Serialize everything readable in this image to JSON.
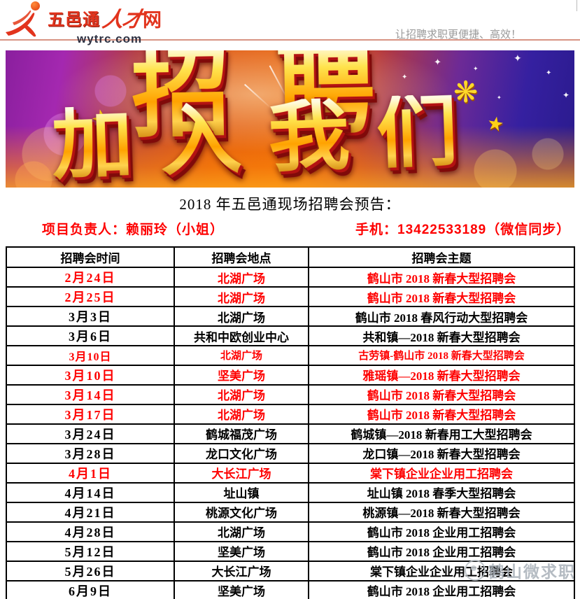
{
  "header": {
    "logo": {
      "brand": "五邑通",
      "brand_talent": "人才",
      "brand_net": "网",
      "domain": "wytrc.com"
    },
    "tagline": "让招聘求职更便捷、高效！"
  },
  "banner": {
    "title_line1": "招聘",
    "title_line2": "加入我们",
    "icons": {
      "star": "★",
      "flower": "❋",
      "sparkle": "✦"
    }
  },
  "intro": {
    "title": "2018 年五邑通现场招聘会预告：",
    "contact_person": "项目负责人：赖丽玲（小姐）",
    "contact_phone": "手机：13422533189（微信同步）"
  },
  "fair_table": {
    "headers": [
      "招聘会时间",
      "招聘会地点",
      "招聘会主题"
    ],
    "rows": [
      {
        "date": "2月24日",
        "place": "北湖广场",
        "theme": "鹤山市 2018 新春大型招聘会",
        "highlight": true
      },
      {
        "date": "2月25日",
        "place": "北湖广场",
        "theme": "鹤山市 2018 新春大型招聘会",
        "highlight": true
      },
      {
        "date": "3月3日",
        "place": "北湖广场",
        "theme": "鹤山市 2018 春风行动大型招聘会",
        "highlight": false
      },
      {
        "date": "3月6日",
        "place": "共和中欧创业中心",
        "theme": "共和镇—2018 新春大型招聘会",
        "highlight": false
      },
      {
        "date": "3月10日",
        "place": "北湖广场",
        "theme": "古劳镇-鹤山市 2018 新春大型招聘会",
        "highlight": true,
        "small": true
      },
      {
        "date": "3月10日",
        "place": "坚美广场",
        "theme": "雅瑶镇—2018 新春大型招聘会",
        "highlight": true
      },
      {
        "date": "3月14日",
        "place": "北湖广场",
        "theme": "鹤山市 2018 新春大型招聘会",
        "highlight": true
      },
      {
        "date": "3月17日",
        "place": "北湖广场",
        "theme": "鹤山市 2018 新春大型招聘会",
        "highlight": true
      },
      {
        "date": "3月24日",
        "place": "鹤城福茂广场",
        "theme": "鹤城镇—2018 新春用工大型招聘会",
        "highlight": false
      },
      {
        "date": "3月28日",
        "place": "龙口文化广场",
        "theme": "龙口镇—2018 新春大型招聘会",
        "highlight": false
      },
      {
        "date": "4月1日",
        "place": "大长江广场",
        "theme": "棠下镇企业企业用工招聘会",
        "highlight": true
      },
      {
        "date": "4月14日",
        "place": "址山镇",
        "theme": "址山镇 2018 春季大型招聘会",
        "highlight": false
      },
      {
        "date": "4月21日",
        "place": "桃源文化广场",
        "theme": "桃源镇—2018 新春大型招聘会",
        "highlight": false
      },
      {
        "date": "4月28日",
        "place": "北湖广场",
        "theme": "鹤山市 2018 企业用工招聘会",
        "highlight": false
      },
      {
        "date": "5月12日",
        "place": "坚美广场",
        "theme": "鹤山市 2018 企业用工招聘会",
        "highlight": false
      },
      {
        "date": "5月26日",
        "place": "大长江广场",
        "theme": "棠下镇企业企业用工招聘会",
        "highlight": false
      },
      {
        "date": "6月9日",
        "place": "坚美广场",
        "theme": "鹤山市 2018 企业用工招聘会",
        "highlight": false
      }
    ]
  },
  "watermark": {
    "text": "鹤山微求职"
  },
  "colors": {
    "highlight-red": "#fe0000",
    "logo-red": "#e2341d",
    "tagline-gray": "#9a9a9a",
    "watermark-gray": "#a9b1b9",
    "domain-dark": "#2e3142",
    "banner-gold": "#ffc200"
  }
}
